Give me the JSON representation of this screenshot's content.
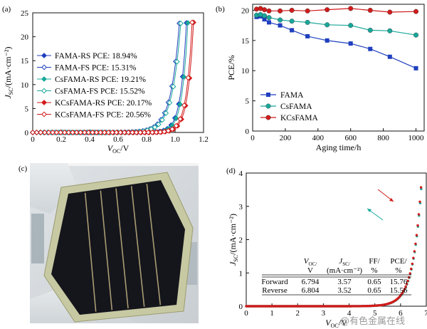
{
  "panels": {
    "a": "(a)",
    "b": "(b)",
    "c": "(c)",
    "d": "(d)"
  },
  "watermark": "@有色金属在线",
  "colors": {
    "blue": "#1f3fbf",
    "teal": "#18a89a",
    "red": "#d11b1b",
    "solar_cell": "#15151c",
    "busbar": "#a99d73",
    "frame": "#c7c9a3"
  },
  "chart_data": [
    {
      "id": "a",
      "type": "line",
      "xlabel_main": "V",
      "xlabel_sub": "OC",
      "xlabel_unit": "/V",
      "ylabel_main": "J",
      "ylabel_sub": "SC",
      "ylabel_unit": "/(mA·cm⁻²)",
      "xlim": [
        0,
        1.2
      ],
      "ylim": [
        0,
        25
      ],
      "xticks": [
        "0",
        "0.2",
        "0.4",
        "0.6",
        "0.8",
        "1.0",
        "1.2"
      ],
      "yticks": [
        "0",
        "5",
        "10",
        "15",
        "20",
        "25"
      ],
      "legend_position": "bottom-left",
      "series": [
        {
          "name": "FAMA-RS PCE: 18.94%",
          "color": "#1f3fbf",
          "marker": "filled-diamond",
          "jsc": 22.9,
          "voc": 1.08
        },
        {
          "name": "FAMA-FS PCE: 15.31%",
          "color": "#1f3fbf",
          "marker": "open-diamond",
          "jsc": 22.8,
          "voc": 1.03
        },
        {
          "name": "CsFAMA-RS PCE: 19.21%",
          "color": "#18a89a",
          "marker": "filled-diamond",
          "jsc": 22.9,
          "voc": 1.09
        },
        {
          "name": "CsFAMA-FS PCE: 15.52%",
          "color": "#18a89a",
          "marker": "open-diamond",
          "jsc": 22.8,
          "voc": 1.04
        },
        {
          "name": "KCsFAMA-RS PCE: 20.17%",
          "color": "#d11b1b",
          "marker": "filled-diamond",
          "jsc": 23.0,
          "voc": 1.13
        },
        {
          "name": "KCsFAMA-FS PCE: 20.56%",
          "color": "#d11b1b",
          "marker": "open-diamond",
          "jsc": 23.0,
          "voc": 1.12
        }
      ]
    },
    {
      "id": "b",
      "type": "line",
      "xlabel": "Aging time/h",
      "ylabel": "PCE/%",
      "xlim": [
        0,
        1050
      ],
      "ylim": [
        0,
        21
      ],
      "xticks": [
        "0",
        "200",
        "400",
        "600",
        "800",
        "1000"
      ],
      "yticks": [
        "0",
        "5",
        "10",
        "15",
        "20"
      ],
      "legend_position": "bottom-left",
      "series": [
        {
          "name": "FAMA",
          "color": "#1f3fbf",
          "marker": "square",
          "x": [
            24,
            48,
            72,
            100,
            168,
            240,
            336,
            456,
            600,
            720,
            840,
            1000
          ],
          "y": [
            18.9,
            19.0,
            18.5,
            18.0,
            17.5,
            16.7,
            15.7,
            15.0,
            14.5,
            13.6,
            12.3,
            10.4
          ]
        },
        {
          "name": "CsFAMA",
          "color": "#18a89a",
          "marker": "circle",
          "x": [
            24,
            48,
            72,
            100,
            168,
            240,
            336,
            456,
            600,
            720,
            840,
            1000
          ],
          "y": [
            19.2,
            19.3,
            19.1,
            18.8,
            18.4,
            18.2,
            18.0,
            17.6,
            17.5,
            16.7,
            16.6,
            15.9
          ]
        },
        {
          "name": "KCsFAMA",
          "color": "#d11b1b",
          "marker": "circle",
          "x": [
            24,
            48,
            72,
            100,
            168,
            240,
            336,
            456,
            600,
            720,
            840,
            1000
          ],
          "y": [
            20.2,
            20.3,
            20.1,
            19.9,
            19.9,
            20.0,
            19.9,
            20.1,
            20.3,
            20.0,
            19.7,
            19.8
          ]
        }
      ]
    },
    {
      "id": "d",
      "type": "line",
      "xlabel_main": "V",
      "xlabel_sub": "OC",
      "xlabel_unit": "/V",
      "ylabel_main": "J",
      "ylabel_sub": "SC",
      "ylabel_unit": "/(mA·cm⁻²)",
      "xlim": [
        0,
        7
      ],
      "ylim": [
        0,
        4
      ],
      "xticks": [
        "0",
        "1",
        "2",
        "3",
        "4",
        "5",
        "6",
        "7"
      ],
      "yticks": [
        "0",
        "1",
        "2",
        "3",
        "4"
      ],
      "series": [
        {
          "name": "Forward",
          "color": "#d11b1b",
          "jsc": 3.57,
          "voc": 6.794
        },
        {
          "name": "Reverse",
          "color": "#18a89a",
          "jsc": 3.52,
          "voc": 6.804
        }
      ],
      "table": {
        "headers": [
          [
            "",
            ""
          ],
          [
            "V",
            "OC/",
            "V"
          ],
          [
            "J",
            "SC/",
            "(mA·cm⁻²)"
          ],
          [
            "FF/",
            "%"
          ],
          [
            "PCE/",
            "%"
          ]
        ],
        "rows": [
          [
            "Forward",
            "6.794",
            "3.57",
            "0.65",
            "15.76"
          ],
          [
            "Reverse",
            "6.804",
            "3.52",
            "0.65",
            "15.56"
          ]
        ]
      }
    }
  ]
}
